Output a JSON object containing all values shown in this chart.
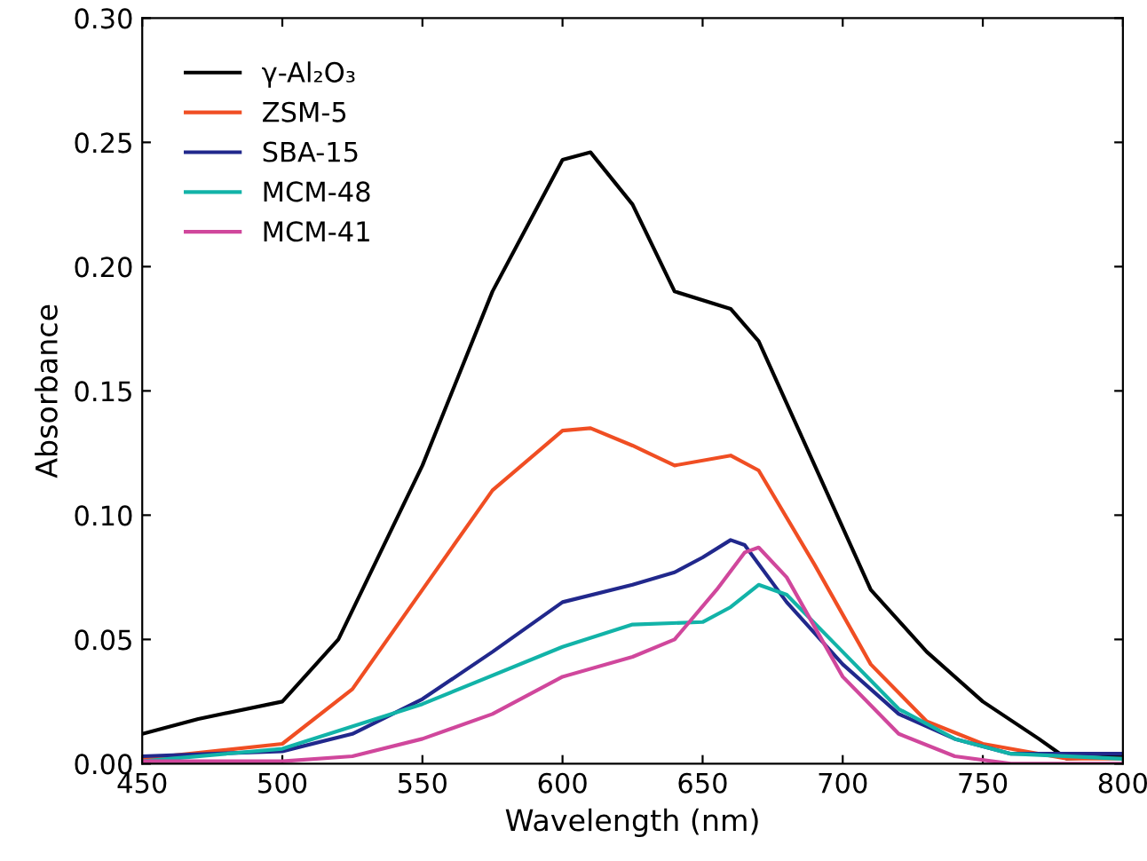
{
  "chart_data": {
    "type": "line",
    "xlabel": "Wavelength (nm)",
    "ylabel": "Absorbance",
    "xlim": [
      450,
      800
    ],
    "ylim": [
      0,
      0.3
    ],
    "xticks": [
      450,
      500,
      550,
      600,
      650,
      700,
      750,
      800
    ],
    "yticks": [
      {
        "value": 0,
        "label": "0.00"
      },
      {
        "value": 0.05,
        "label": "0.05"
      },
      {
        "value": 0.1,
        "label": "0.10"
      },
      {
        "value": 0.15,
        "label": "0.15"
      },
      {
        "value": 0.2,
        "label": "0.20"
      },
      {
        "value": 0.25,
        "label": "0.25"
      },
      {
        "value": 0.3,
        "label": "0.30"
      }
    ],
    "grid": false,
    "legend": "top left",
    "line_style": "solid",
    "marker": "none",
    "series": [
      {
        "name": "γ-Al₂O₃",
        "color": "#000000",
        "x": [
          450,
          470,
          500,
          520,
          550,
          575,
          600,
          610,
          625,
          640,
          660,
          670,
          690,
          710,
          730,
          750,
          770,
          780,
          800
        ],
        "values": [
          0.012,
          0.018,
          0.025,
          0.05,
          0.12,
          0.19,
          0.243,
          0.246,
          0.225,
          0.19,
          0.183,
          0.17,
          0.12,
          0.07,
          0.045,
          0.025,
          0.01,
          0.002,
          0.003
        ]
      },
      {
        "name": "ZSM-5",
        "color": "#f04e23",
        "x": [
          450,
          500,
          525,
          550,
          575,
          600,
          610,
          625,
          640,
          660,
          670,
          690,
          710,
          730,
          750,
          780,
          800
        ],
        "values": [
          0.002,
          0.008,
          0.03,
          0.07,
          0.11,
          0.134,
          0.135,
          0.128,
          0.12,
          0.124,
          0.118,
          0.08,
          0.04,
          0.017,
          0.008,
          0.002,
          0.002
        ]
      },
      {
        "name": "SBA-15",
        "color": "#21288c",
        "x": [
          450,
          500,
          525,
          550,
          575,
          600,
          625,
          640,
          650,
          660,
          665,
          680,
          700,
          720,
          740,
          760,
          800
        ],
        "values": [
          0.003,
          0.005,
          0.012,
          0.026,
          0.045,
          0.065,
          0.072,
          0.077,
          0.083,
          0.09,
          0.088,
          0.065,
          0.04,
          0.02,
          0.01,
          0.004,
          0.004
        ]
      },
      {
        "name": "MCM-48",
        "color": "#12b3a8",
        "x": [
          450,
          500,
          550,
          600,
          625,
          650,
          660,
          670,
          680,
          700,
          720,
          740,
          760,
          800
        ],
        "values": [
          0.001,
          0.006,
          0.024,
          0.047,
          0.056,
          0.057,
          0.063,
          0.072,
          0.068,
          0.045,
          0.022,
          0.01,
          0.004,
          0.002
        ]
      },
      {
        "name": "MCM-41",
        "color": "#d0479c",
        "x": [
          450,
          500,
          525,
          550,
          575,
          600,
          625,
          640,
          655,
          665,
          670,
          680,
          700,
          720,
          740,
          760,
          800
        ],
        "values": [
          0.001,
          0.001,
          0.003,
          0.01,
          0.02,
          0.035,
          0.043,
          0.05,
          0.07,
          0.085,
          0.087,
          0.075,
          0.035,
          0.012,
          0.003,
          0.0,
          0.0
        ]
      }
    ]
  }
}
